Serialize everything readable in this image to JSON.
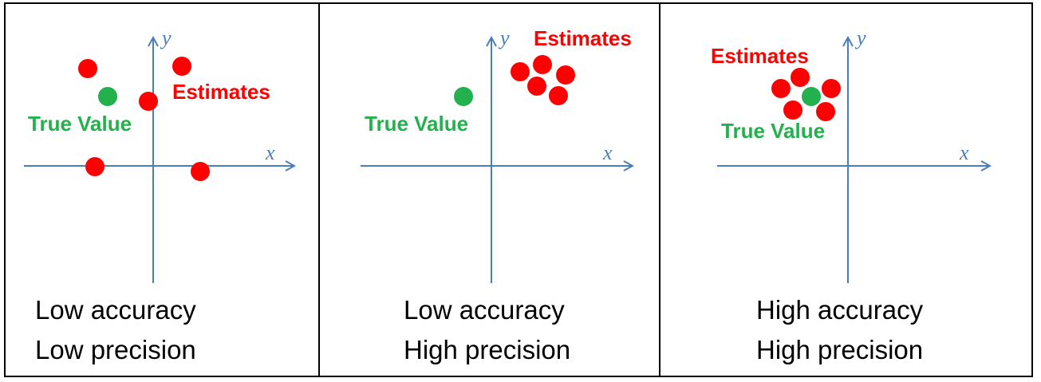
{
  "colors": {
    "axis": "#4a7ebb",
    "estimate": "#ff0000",
    "true_value": "#22b14c",
    "border": "#000000"
  },
  "panels": [
    {
      "axis_x_label": "x",
      "axis_y_label": "y",
      "estimates_label": "Estimates",
      "true_value_label": "True Value",
      "caption_line1": "Low accuracy",
      "caption_line2": "Low precision"
    },
    {
      "axis_x_label": "x",
      "axis_y_label": "y",
      "estimates_label": "Estimates",
      "true_value_label": "True Value",
      "caption_line1": "Low accuracy",
      "caption_line2": "High precision"
    },
    {
      "axis_x_label": "x",
      "axis_y_label": "y",
      "estimates_label": "Estimates",
      "true_value_label": "True Value",
      "caption_line1": "High accuracy",
      "caption_line2": "High precision"
    }
  ]
}
